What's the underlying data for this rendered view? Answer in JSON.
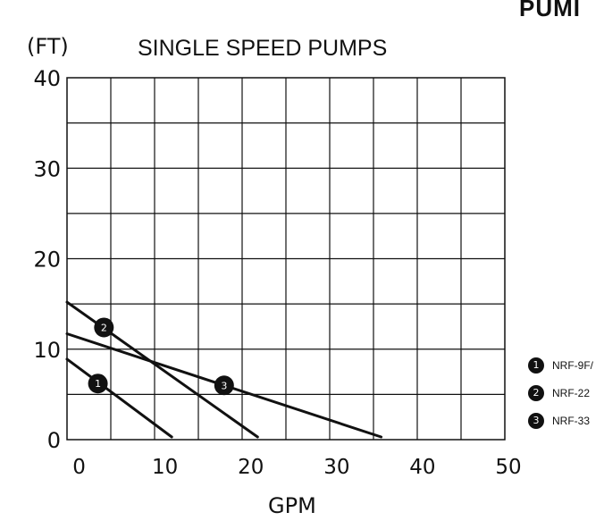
{
  "corner_label": "PUMI",
  "chart_data": {
    "type": "line",
    "title": "SINGLE SPEED PUMPS",
    "ylabel": "(FT)",
    "xlabel": "GPM",
    "xlim": [
      -1,
      50
    ],
    "ylim": [
      0,
      40
    ],
    "x_ticks": [
      0,
      10,
      20,
      30,
      40,
      50
    ],
    "y_ticks": [
      0,
      10,
      20,
      30,
      40
    ],
    "grid": true,
    "legend_position": "right",
    "series": [
      {
        "name": "NRF-9F/",
        "marker": "1",
        "points": [
          [
            -1,
            8.9
          ],
          [
            11.2,
            0.3
          ]
        ],
        "marker_at": [
          2.6,
          6.2
        ]
      },
      {
        "name": "NRF-22",
        "marker": "2",
        "points": [
          [
            -1,
            15.2
          ],
          [
            21.2,
            0.3
          ]
        ],
        "marker_at": [
          3.3,
          12.4
        ]
      },
      {
        "name": "NRF-33",
        "marker": "3",
        "points": [
          [
            -1,
            11.7
          ],
          [
            35.6,
            0.3
          ]
        ],
        "marker_at": [
          17.3,
          6.0
        ]
      }
    ]
  }
}
